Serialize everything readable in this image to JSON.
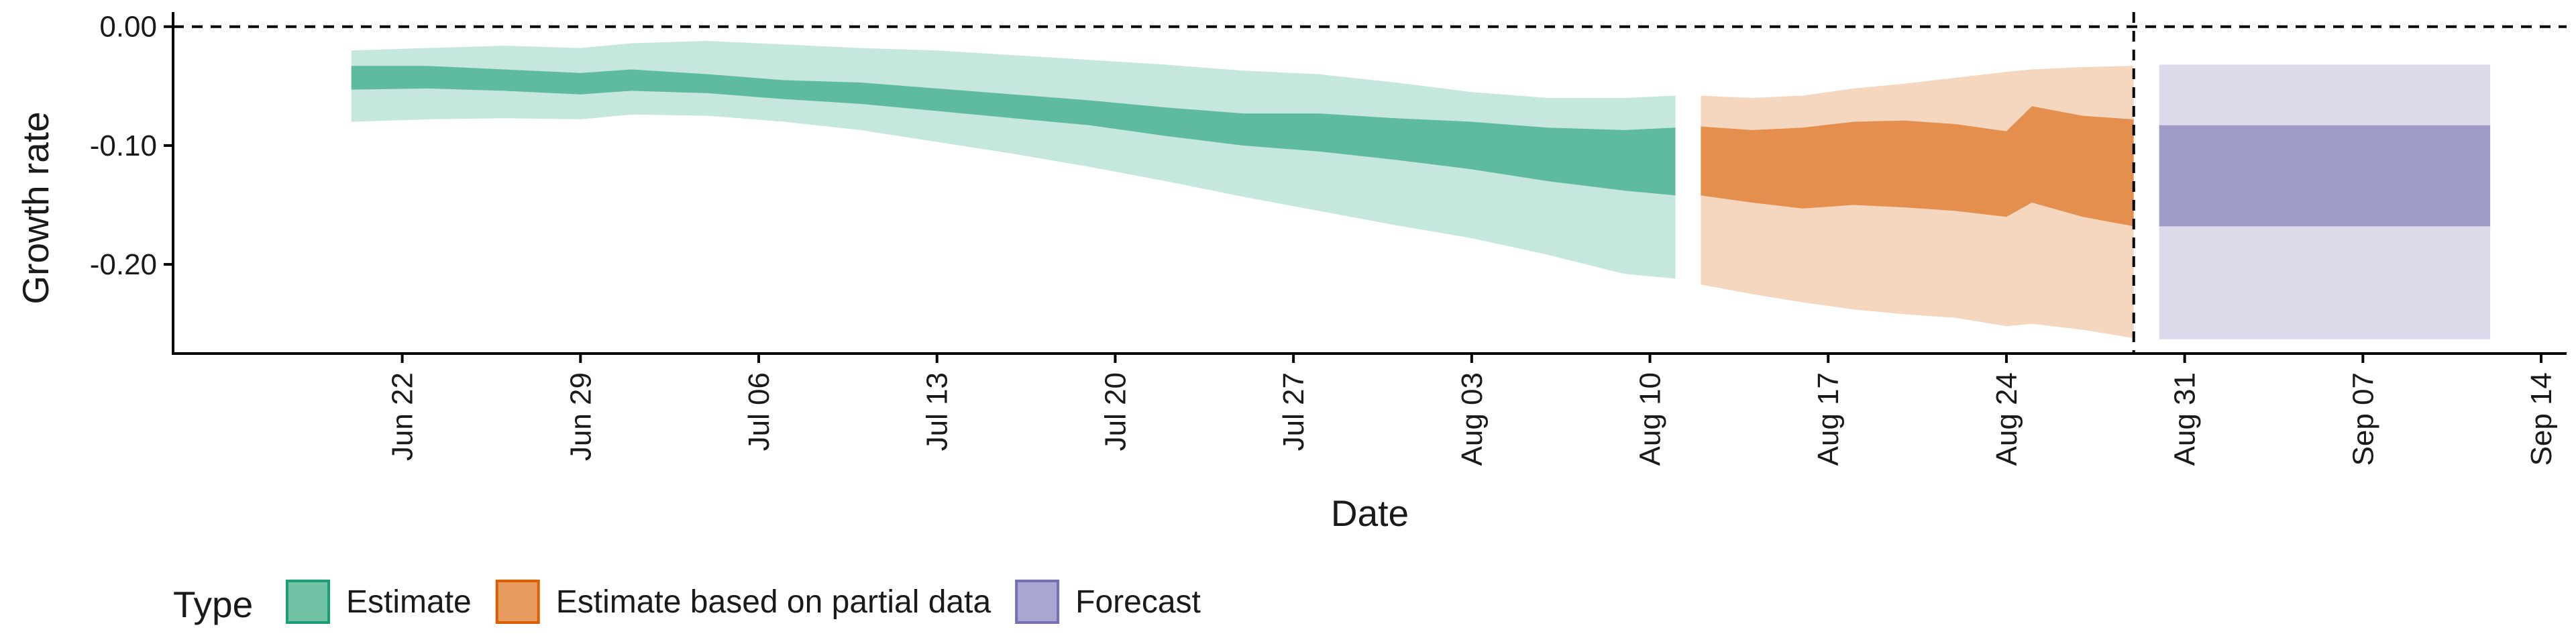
{
  "chart_data": {
    "type": "area",
    "xlabel": "Date",
    "ylabel": "Growth rate",
    "x_range": [
      "2020-06-13",
      "2020-09-15"
    ],
    "ylim": [
      -0.275,
      0.01
    ],
    "yticks": [
      {
        "value": 0.0,
        "label": "0.00"
      },
      {
        "value": -0.1,
        "label": "-0.10"
      },
      {
        "value": -0.2,
        "label": "-0.20"
      }
    ],
    "xticks": [
      {
        "date": "2020-06-22",
        "label": "Jun 22"
      },
      {
        "date": "2020-06-29",
        "label": "Jun 29"
      },
      {
        "date": "2020-07-06",
        "label": "Jul 06"
      },
      {
        "date": "2020-07-13",
        "label": "Jul 13"
      },
      {
        "date": "2020-07-20",
        "label": "Jul 20"
      },
      {
        "date": "2020-07-27",
        "label": "Jul 27"
      },
      {
        "date": "2020-08-03",
        "label": "Aug 03"
      },
      {
        "date": "2020-08-10",
        "label": "Aug 10"
      },
      {
        "date": "2020-08-17",
        "label": "Aug 17"
      },
      {
        "date": "2020-08-24",
        "label": "Aug 24"
      },
      {
        "date": "2020-08-31",
        "label": "Aug 31"
      },
      {
        "date": "2020-09-07",
        "label": "Sep 07"
      },
      {
        "date": "2020-09-14",
        "label": "Sep 14"
      }
    ],
    "reference_lines": [
      {
        "axis": "y",
        "value": 0.0,
        "style": "dashed"
      },
      {
        "axis": "x",
        "date": "2020-08-29",
        "style": "dashed"
      }
    ],
    "grid": false,
    "legend": {
      "title": "Type",
      "position": "bottom-left",
      "entries": [
        {
          "label": "Estimate",
          "fill": "#72c2a6",
          "stroke": "#1b9e77"
        },
        {
          "label": "Estimate based on partial data",
          "fill": "#e89b5e",
          "stroke": "#d95f02"
        },
        {
          "label": "Forecast",
          "fill": "#a9a6d1",
          "stroke": "#7570b3"
        }
      ]
    },
    "series": [
      {
        "type": "Estimate",
        "color": "#1b9e77",
        "points": [
          {
            "date": "2020-06-20",
            "lo90": -0.08,
            "lo50": -0.053,
            "hi50": -0.033,
            "hi90": -0.02
          },
          {
            "date": "2020-06-23",
            "lo90": -0.078,
            "lo50": -0.052,
            "hi50": -0.033,
            "hi90": -0.018
          },
          {
            "date": "2020-06-26",
            "lo90": -0.077,
            "lo50": -0.054,
            "hi50": -0.036,
            "hi90": -0.016
          },
          {
            "date": "2020-06-29",
            "lo90": -0.078,
            "lo50": -0.057,
            "hi50": -0.039,
            "hi90": -0.018
          },
          {
            "date": "2020-07-01",
            "lo90": -0.074,
            "lo50": -0.054,
            "hi50": -0.036,
            "hi90": -0.014
          },
          {
            "date": "2020-07-04",
            "lo90": -0.075,
            "lo50": -0.056,
            "hi50": -0.04,
            "hi90": -0.012
          },
          {
            "date": "2020-07-07",
            "lo90": -0.08,
            "lo50": -0.061,
            "hi50": -0.045,
            "hi90": -0.015
          },
          {
            "date": "2020-07-10",
            "lo90": -0.087,
            "lo50": -0.065,
            "hi50": -0.047,
            "hi90": -0.018
          },
          {
            "date": "2020-07-13",
            "lo90": -0.097,
            "lo50": -0.071,
            "hi50": -0.052,
            "hi90": -0.02
          },
          {
            "date": "2020-07-16",
            "lo90": -0.107,
            "lo50": -0.077,
            "hi50": -0.057,
            "hi90": -0.024
          },
          {
            "date": "2020-07-19",
            "lo90": -0.118,
            "lo50": -0.083,
            "hi50": -0.062,
            "hi90": -0.028
          },
          {
            "date": "2020-07-22",
            "lo90": -0.13,
            "lo50": -0.092,
            "hi50": -0.068,
            "hi90": -0.032
          },
          {
            "date": "2020-07-25",
            "lo90": -0.143,
            "lo50": -0.1,
            "hi50": -0.073,
            "hi90": -0.037
          },
          {
            "date": "2020-07-28",
            "lo90": -0.155,
            "lo50": -0.105,
            "hi50": -0.073,
            "hi90": -0.04
          },
          {
            "date": "2020-07-31",
            "lo90": -0.167,
            "lo50": -0.112,
            "hi50": -0.077,
            "hi90": -0.047
          },
          {
            "date": "2020-08-03",
            "lo90": -0.178,
            "lo50": -0.12,
            "hi50": -0.08,
            "hi90": -0.055
          },
          {
            "date": "2020-08-06",
            "lo90": -0.192,
            "lo50": -0.13,
            "hi50": -0.085,
            "hi90": -0.06
          },
          {
            "date": "2020-08-09",
            "lo90": -0.208,
            "lo50": -0.138,
            "hi50": -0.087,
            "hi90": -0.06
          },
          {
            "date": "2020-08-11",
            "lo90": -0.212,
            "lo50": -0.142,
            "hi50": -0.085,
            "hi90": -0.058
          }
        ]
      },
      {
        "type": "Estimate based on partial data",
        "color": "#d95f02",
        "points": [
          {
            "date": "2020-08-12",
            "lo90": -0.217,
            "lo50": -0.142,
            "hi50": -0.084,
            "hi90": -0.058
          },
          {
            "date": "2020-08-14",
            "lo90": -0.225,
            "lo50": -0.148,
            "hi50": -0.087,
            "hi90": -0.06
          },
          {
            "date": "2020-08-16",
            "lo90": -0.232,
            "lo50": -0.153,
            "hi50": -0.085,
            "hi90": -0.058
          },
          {
            "date": "2020-08-18",
            "lo90": -0.238,
            "lo50": -0.15,
            "hi50": -0.08,
            "hi90": -0.052
          },
          {
            "date": "2020-08-20",
            "lo90": -0.242,
            "lo50": -0.152,
            "hi50": -0.079,
            "hi90": -0.048
          },
          {
            "date": "2020-08-22",
            "lo90": -0.245,
            "lo50": -0.155,
            "hi50": -0.082,
            "hi90": -0.043
          },
          {
            "date": "2020-08-24",
            "lo90": -0.252,
            "lo50": -0.16,
            "hi50": -0.088,
            "hi90": -0.038
          },
          {
            "date": "2020-08-25",
            "lo90": -0.25,
            "lo50": -0.148,
            "hi50": -0.067,
            "hi90": -0.036
          },
          {
            "date": "2020-08-27",
            "lo90": -0.255,
            "lo50": -0.16,
            "hi50": -0.075,
            "hi90": -0.034
          },
          {
            "date": "2020-08-29",
            "lo90": -0.262,
            "lo50": -0.168,
            "hi50": -0.078,
            "hi90": -0.033
          }
        ]
      },
      {
        "type": "Forecast",
        "color": "#7570b3",
        "points": [
          {
            "date": "2020-08-30",
            "lo90": -0.263,
            "lo50": -0.168,
            "hi50": -0.083,
            "hi90": -0.032
          },
          {
            "date": "2020-09-12",
            "lo90": -0.263,
            "lo50": -0.168,
            "hi50": -0.083,
            "hi90": -0.032
          }
        ]
      }
    ]
  }
}
